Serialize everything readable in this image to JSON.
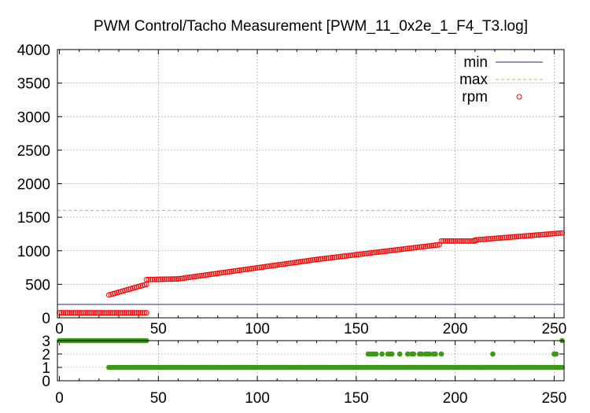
{
  "title": "PWM Control/Tacho Measurement [PWM_11_0x2e_1_F4_T3.log]",
  "chart_data": [
    {
      "type": "scatter",
      "xlim": [
        -1,
        255
      ],
      "ylim": [
        0,
        4000
      ],
      "xticks": [
        0,
        50,
        100,
        150,
        200,
        250
      ],
      "yticks": [
        0,
        500,
        1000,
        1500,
        2000,
        2500,
        3000,
        3500,
        4000
      ],
      "grid": true,
      "legend_position": "top-right",
      "series": [
        {
          "name": "min",
          "kind": "hline",
          "value": 200,
          "color": "#1f2f8f"
        },
        {
          "name": "max",
          "kind": "hline",
          "value": 1600,
          "color": "#f0a040",
          "dashed": true
        },
        {
          "name": "rpm",
          "kind": "points",
          "color": "#ff0000",
          "segments": [
            {
              "x": [
                0,
                44
              ],
              "y": [
                75,
                75
              ]
            },
            {
              "x": [
                25,
                44
              ],
              "y": [
                340,
                500
              ]
            },
            {
              "x": [
                44,
                60
              ],
              "y": [
                570,
                580
              ]
            },
            {
              "x": [
                60,
                130
              ],
              "y": [
                580,
                870
              ]
            },
            {
              "x": [
                130,
                192
              ],
              "y": [
                870,
                1090
              ]
            },
            {
              "x": [
                193,
                210
              ],
              "y": [
                1145,
                1145
              ]
            },
            {
              "x": [
                210,
                254
              ],
              "y": [
                1160,
                1265
              ]
            }
          ]
        }
      ]
    },
    {
      "type": "scatter",
      "xlim": [
        -1,
        255
      ],
      "ylim": [
        0,
        3
      ],
      "xticks": [
        0,
        50,
        100,
        150,
        200,
        250
      ],
      "yticks": [
        0,
        1,
        2,
        3
      ],
      "grid": true,
      "series": [
        {
          "kind": "points",
          "color": "#3a9a10",
          "segments": [
            {
              "x": [
                0,
                44
              ],
              "y": [
                3,
                3
              ]
            },
            {
              "x": [
                25,
                254
              ],
              "y": [
                1,
                1
              ]
            }
          ],
          "sparse": [
            {
              "x": [
                156,
                157,
                158,
                159,
                160,
                163,
                166,
                167,
                168,
                172,
                176,
                178,
                179,
                182,
                183,
                185,
                186,
                187,
                189,
                190,
                193,
                219,
                250,
                251
              ],
              "y": 2
            },
            {
              "x": [
                254
              ],
              "y": 3
            }
          ]
        }
      ]
    }
  ]
}
